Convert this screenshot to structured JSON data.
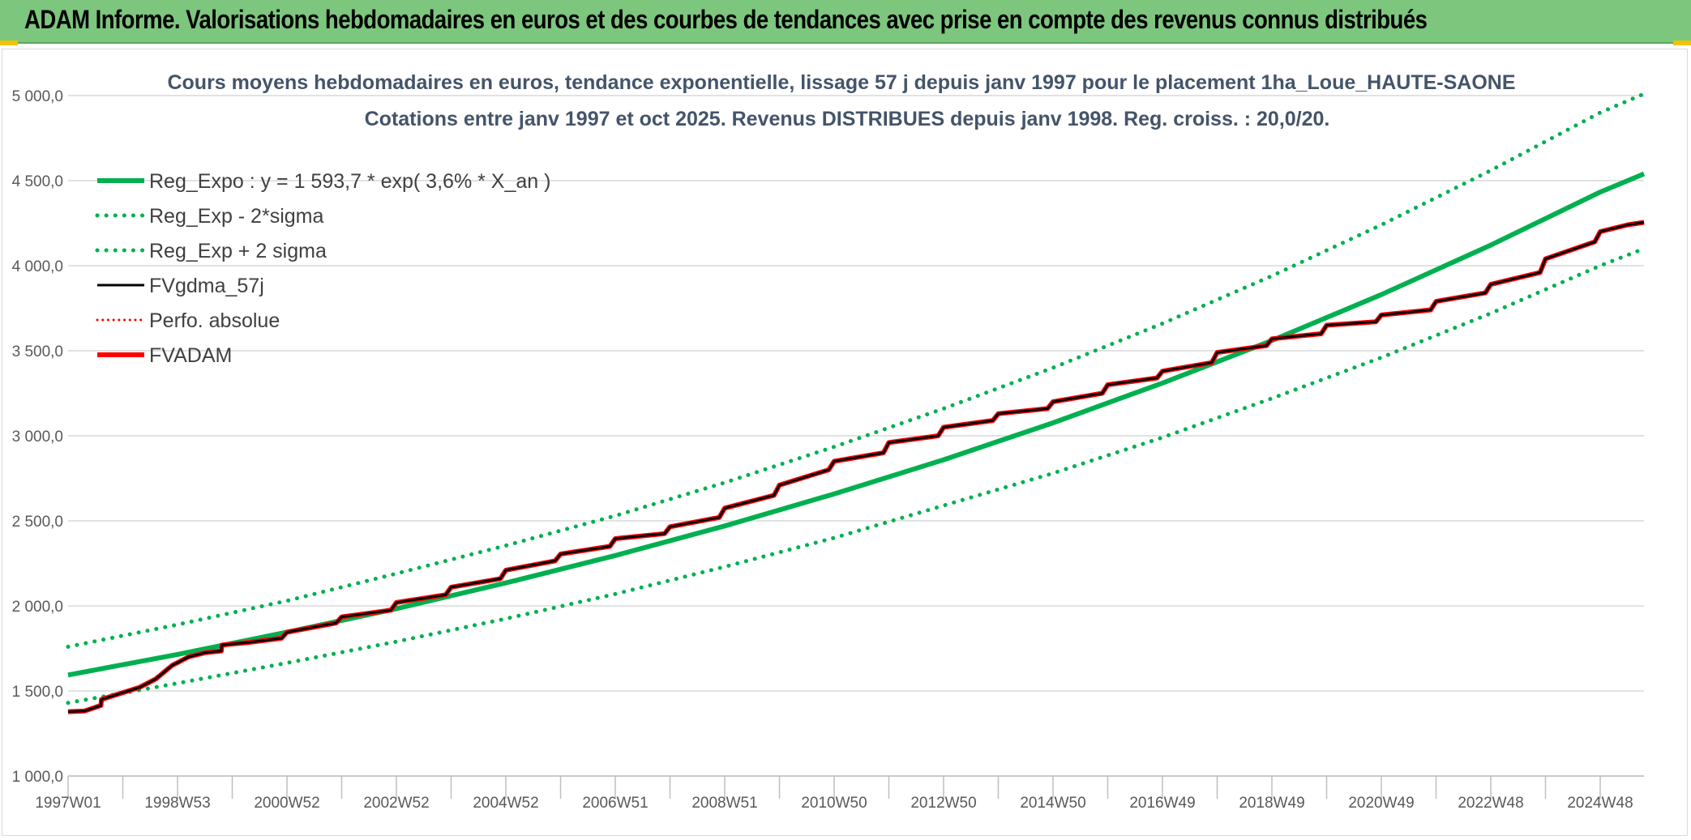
{
  "banner": {
    "title": "ADAM Informe. Valorisations hebdomadaires en euros et des courbes de tendances avec prise en compte des revenus connus distribués"
  },
  "colors": {
    "banner_bg": "#7dc67e",
    "green": "#00b050",
    "red": "#ff0000",
    "black": "#000000",
    "grid": "#d9d9d9",
    "title": "#44546a"
  },
  "chart_data": {
    "type": "line",
    "title": [
      "Cours moyens hebdomadaires en euros, tendance exponentielle, lissage 57 j depuis janv 1997 pour le placement 1ha_Loue_HAUTE-SAONE",
      "Cotations entre janv 1997 et oct 2025. Revenus DISTRIBUES depuis janv 1998. Reg. croiss. : 20,0/20."
    ],
    "xlabel": "",
    "ylabel": "",
    "xlim": [
      1997.0,
      2025.8
    ],
    "ylim": [
      1000,
      5000
    ],
    "grid": true,
    "legend_position": "top-left",
    "y_ticks": [
      {
        "value": 1000,
        "label": "1 000,0"
      },
      {
        "value": 1500,
        "label": "1 500,0"
      },
      {
        "value": 2000,
        "label": "2 000,0"
      },
      {
        "value": 2500,
        "label": "2 500,0"
      },
      {
        "value": 3000,
        "label": "3 000,0"
      },
      {
        "value": 3500,
        "label": "3 500,0"
      },
      {
        "value": 4000,
        "label": "4 000,0"
      },
      {
        "value": 4500,
        "label": "4 500,0"
      },
      {
        "value": 5000,
        "label": "5 000,0"
      }
    ],
    "x_ticks": [
      {
        "value": 1997.0,
        "label": "1997W01"
      },
      {
        "value": 1999.0,
        "label": "1998W53"
      },
      {
        "value": 2001.0,
        "label": "2000W52"
      },
      {
        "value": 2003.0,
        "label": "2002W52"
      },
      {
        "value": 2005.0,
        "label": "2004W52"
      },
      {
        "value": 2007.0,
        "label": "2006W51"
      },
      {
        "value": 2009.0,
        "label": "2008W51"
      },
      {
        "value": 2011.0,
        "label": "2010W50"
      },
      {
        "value": 2013.0,
        "label": "2012W50"
      },
      {
        "value": 2015.0,
        "label": "2014W50"
      },
      {
        "value": 2017.0,
        "label": "2016W49"
      },
      {
        "value": 2019.0,
        "label": "2018W49"
      },
      {
        "value": 2021.0,
        "label": "2020W49"
      },
      {
        "value": 2023.0,
        "label": "2022W48"
      },
      {
        "value": 2025.0,
        "label": "2024W48"
      }
    ],
    "minor_ticks": [
      1998.0,
      2000.0,
      2002.0,
      2004.0,
      2006.0,
      2008.0,
      2010.0,
      2012.0,
      2014.0,
      2016.0,
      2018.0,
      2020.0,
      2022.0,
      2024.0
    ],
    "series": [
      {
        "name": "Reg_Expo : y = 1 593,7 * exp( 3,6% *  X_an )",
        "color": "#00b050",
        "style": "solid",
        "width": 6,
        "x": [
          1997.0,
          1999.0,
          2001.0,
          2003.0,
          2005.0,
          2007.0,
          2009.0,
          2011.0,
          2013.0,
          2015.0,
          2017.0,
          2019.0,
          2021.0,
          2023.0,
          2025.0,
          2025.8
        ],
        "values": [
          1594,
          1715,
          1845,
          1984,
          2135,
          2296,
          2470,
          2658,
          2859,
          3076,
          3310,
          3560,
          3830,
          4121,
          4433,
          4540
        ]
      },
      {
        "name": "Reg_Exp - 2*sigma",
        "color": "#00b050",
        "style": "dotted",
        "width": 5,
        "x": [
          1997.0,
          1999.0,
          2001.0,
          2003.0,
          2005.0,
          2007.0,
          2009.0,
          2011.0,
          2013.0,
          2015.0,
          2017.0,
          2019.0,
          2021.0,
          2023.0,
          2025.0,
          2025.8
        ],
        "values": [
          1430,
          1545,
          1665,
          1790,
          1925,
          2070,
          2230,
          2400,
          2590,
          2780,
          2990,
          3220,
          3460,
          3720,
          4000,
          4100
        ]
      },
      {
        "name": "Reg_Exp + 2 sigma",
        "color": "#00b050",
        "style": "dotted",
        "width": 5,
        "x": [
          1997.0,
          1999.0,
          2001.0,
          2003.0,
          2005.0,
          2007.0,
          2009.0,
          2011.0,
          2013.0,
          2015.0,
          2017.0,
          2019.0,
          2021.0,
          2023.0,
          2025.0,
          2025.8
        ],
        "values": [
          1760,
          1890,
          2030,
          2190,
          2355,
          2530,
          2725,
          2935,
          3160,
          3400,
          3660,
          3940,
          4240,
          4560,
          4900,
          5010
        ]
      },
      {
        "name": "FVgdma_57j",
        "color": "#000000",
        "style": "solid",
        "width": 3,
        "x": [
          1997.0,
          1997.3,
          1997.6,
          1997.61,
          1998.0,
          1998.3,
          1998.6,
          1998.9,
          1999.2,
          1999.5,
          1999.8,
          1999.81,
          2000.3,
          2000.9,
          2001.0,
          2001.9,
          2002.0,
          2002.9,
          2003.0,
          2003.9,
          2004.0,
          2004.9,
          2005.0,
          2005.9,
          2006.0,
          2006.9,
          2007.0,
          2007.9,
          2008.0,
          2008.9,
          2009.0,
          2009.9,
          2010.0,
          2010.9,
          2011.0,
          2011.9,
          2012.0,
          2012.9,
          2013.0,
          2013.9,
          2014.0,
          2014.9,
          2015.0,
          2015.9,
          2016.0,
          2016.9,
          2017.0,
          2017.9,
          2018.0,
          2018.9,
          2019.0,
          2019.9,
          2020.0,
          2020.9,
          2021.0,
          2021.9,
          2022.0,
          2022.9,
          2023.0,
          2023.9,
          2024.0,
          2024.9,
          2025.0,
          2025.5,
          2025.8
        ],
        "values": [
          1378,
          1382,
          1415,
          1450,
          1490,
          1520,
          1570,
          1650,
          1700,
          1725,
          1735,
          1770,
          1785,
          1810,
          1845,
          1900,
          1935,
          1975,
          2020,
          2065,
          2110,
          2160,
          2210,
          2265,
          2305,
          2350,
          2395,
          2425,
          2465,
          2520,
          2575,
          2650,
          2710,
          2800,
          2850,
          2900,
          2960,
          3000,
          3050,
          3090,
          3130,
          3160,
          3200,
          3250,
          3300,
          3340,
          3380,
          3430,
          3490,
          3530,
          3570,
          3600,
          3650,
          3670,
          3710,
          3740,
          3790,
          3840,
          3890,
          3960,
          4040,
          4140,
          4200,
          4240,
          4255
        ]
      },
      {
        "name": "Perfo. absolue",
        "color": "#ff0000",
        "style": "dotted",
        "width": 3,
        "x": [],
        "values": []
      },
      {
        "name": "FVADAM",
        "color": "#ff0000",
        "style": "solid",
        "width": 6,
        "x": [
          1997.0,
          1997.3,
          1997.6,
          1997.61,
          1998.0,
          1998.3,
          1998.6,
          1998.9,
          1999.2,
          1999.5,
          1999.8,
          1999.81,
          2000.3,
          2000.9,
          2001.0,
          2001.9,
          2002.0,
          2002.9,
          2003.0,
          2003.9,
          2004.0,
          2004.9,
          2005.0,
          2005.9,
          2006.0,
          2006.9,
          2007.0,
          2007.9,
          2008.0,
          2008.9,
          2009.0,
          2009.9,
          2010.0,
          2010.9,
          2011.0,
          2011.9,
          2012.0,
          2012.9,
          2013.0,
          2013.9,
          2014.0,
          2014.9,
          2015.0,
          2015.9,
          2016.0,
          2016.9,
          2017.0,
          2017.9,
          2018.0,
          2018.9,
          2019.0,
          2019.9,
          2020.0,
          2020.9,
          2021.0,
          2021.9,
          2022.0,
          2022.9,
          2023.0,
          2023.9,
          2024.0,
          2024.9,
          2025.0,
          2025.5,
          2025.8
        ],
        "values": [
          1378,
          1382,
          1415,
          1450,
          1490,
          1520,
          1570,
          1650,
          1700,
          1725,
          1735,
          1770,
          1785,
          1810,
          1845,
          1900,
          1935,
          1975,
          2020,
          2065,
          2110,
          2160,
          2210,
          2265,
          2305,
          2350,
          2395,
          2425,
          2465,
          2520,
          2575,
          2650,
          2710,
          2800,
          2850,
          2900,
          2960,
          3000,
          3050,
          3090,
          3130,
          3160,
          3200,
          3250,
          3300,
          3340,
          3380,
          3430,
          3490,
          3530,
          3570,
          3600,
          3650,
          3670,
          3710,
          3740,
          3790,
          3840,
          3890,
          3960,
          4040,
          4140,
          4200,
          4240,
          4255
        ]
      }
    ]
  }
}
